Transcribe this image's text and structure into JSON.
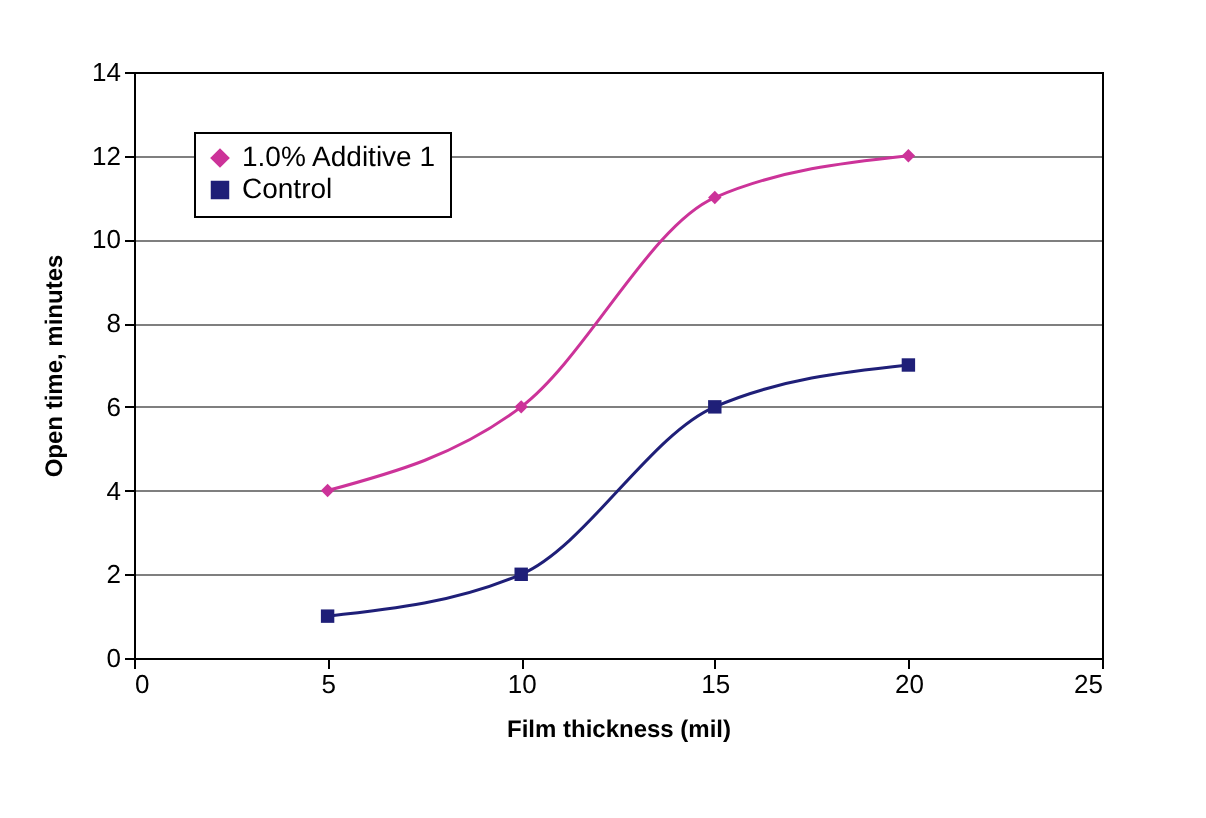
{
  "chart_data": {
    "type": "line",
    "xlabel": "Film thickness (mil)",
    "ylabel": "Open time, minutes",
    "x": [
      5,
      10,
      15,
      20
    ],
    "series": [
      {
        "name": "1.0% Additive 1",
        "color": "#cc3399",
        "marker": "diamond",
        "values": [
          4,
          6,
          11,
          12
        ]
      },
      {
        "name": "Control",
        "color": "#1f1f78",
        "marker": "square",
        "values": [
          1,
          2,
          6,
          7
        ]
      }
    ],
    "xlim": [
      0,
      25
    ],
    "xticks": [
      0,
      5,
      10,
      15,
      20,
      25
    ],
    "ylim": [
      0,
      14
    ],
    "yticks": [
      0,
      2,
      4,
      6,
      8,
      10,
      12,
      14
    ],
    "grid": "y",
    "legend": "top left",
    "line_style": "solid"
  }
}
